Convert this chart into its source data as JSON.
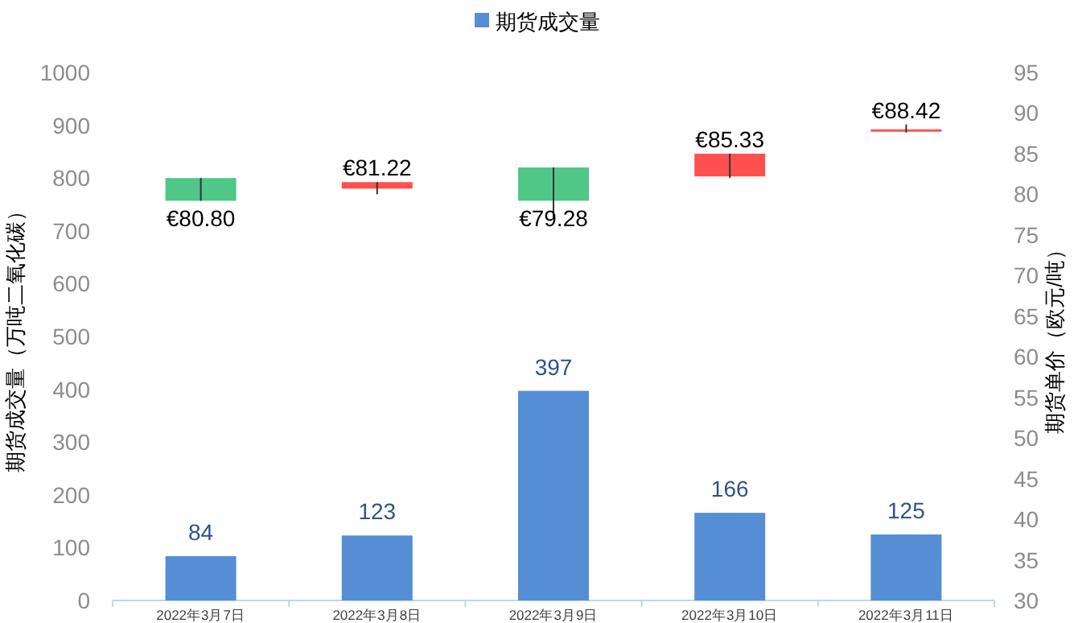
{
  "chart_data": {
    "type": "bar",
    "categories": [
      "2022年3月7日",
      "2022年3月8日",
      "2022年3月9日",
      "2022年3月10日",
      "2022年3月11日"
    ],
    "ylabel": "期货成交量（万吨二氧化碳）",
    "y2label": "期货单价（欧元/吨）",
    "ylim": [
      0,
      1000
    ],
    "yticks": [
      0,
      100,
      200,
      300,
      400,
      500,
      600,
      700,
      800,
      900,
      1000
    ],
    "y2lim": [
      30,
      95
    ],
    "y2ticks": [
      30,
      35,
      40,
      45,
      50,
      55,
      60,
      65,
      70,
      75,
      80,
      85,
      90,
      95
    ],
    "legend": "top",
    "grid": false,
    "data_labels": true,
    "series": [
      {
        "name": "期货成交量",
        "color": "#558ed5",
        "values": [
          84,
          123,
          397,
          166,
          125
        ]
      },
      {
        "type": "candlestick",
        "axis": "y2",
        "colors": [
          "#4fc786",
          "#ff5050",
          "#4fc786",
          "#ff5050",
          "#ff5050"
        ],
        "ohlc": [
          [
            82.0,
            82.0,
            79.2,
            79.2
          ],
          [
            80.7,
            81.5,
            80.0,
            81.5
          ],
          [
            83.3,
            83.3,
            77.1,
            79.2
          ],
          [
            82.2,
            85.0,
            82.0,
            85.0
          ],
          [
            87.8,
            88.6,
            87.6,
            88.0
          ]
        ],
        "value_labels": [
          "€80.80",
          "€81.22",
          "€79.28",
          "€85.33",
          "€88.42"
        ]
      }
    ]
  }
}
